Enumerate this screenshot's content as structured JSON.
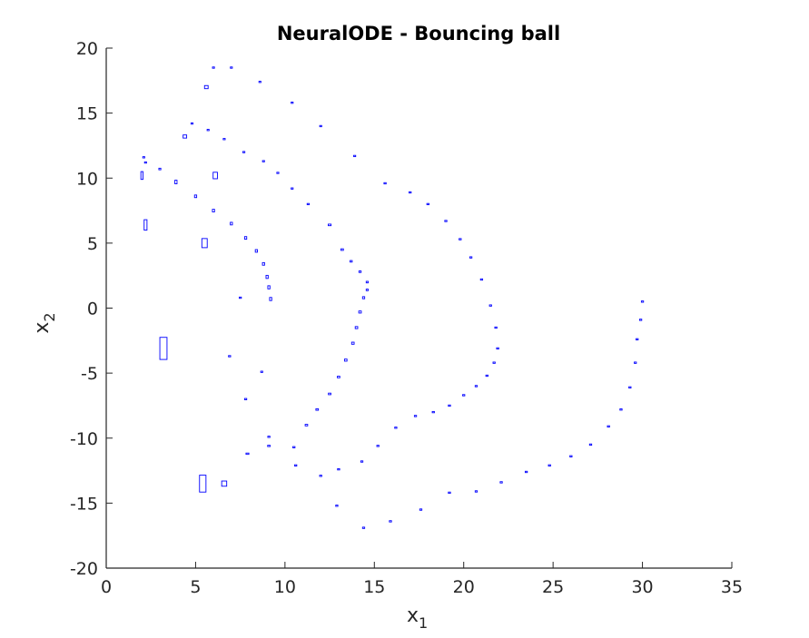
{
  "chart_data": {
    "type": "scatter",
    "title": "NeuralODE - Bouncing ball",
    "xlabel": {
      "base": "x",
      "subscript": "1"
    },
    "ylabel": {
      "base": "x",
      "subscript": "2"
    },
    "xlim": [
      0,
      35
    ],
    "ylim": [
      -20,
      20
    ],
    "xticks": [
      0,
      5,
      10,
      15,
      20,
      25,
      30,
      35
    ],
    "yticks": [
      -20,
      -15,
      -10,
      -5,
      0,
      5,
      10,
      15,
      20
    ],
    "xtick_labels": [
      "0",
      "5",
      "10",
      "15",
      "20",
      "25",
      "30",
      "35"
    ],
    "ytick_labels": [
      "-20",
      "-15",
      "-10",
      "-5",
      "0",
      "5",
      "10",
      "15",
      "20"
    ],
    "grid": false,
    "marker": "uncertainty-box",
    "color": "#0000ff",
    "axis_color": "#262626",
    "points": [
      [
        6.0,
        18.5,
        0.05,
        0.03
      ],
      [
        7.0,
        18.5,
        0.05,
        0.03
      ],
      [
        8.6,
        17.4,
        0.05,
        0.04
      ],
      [
        10.4,
        15.8,
        0.05,
        0.04
      ],
      [
        12.0,
        14.0,
        0.05,
        0.03
      ],
      [
        13.9,
        11.7,
        0.05,
        0.03
      ],
      [
        15.6,
        9.6,
        0.06,
        0.04
      ],
      [
        17.0,
        8.9,
        0.06,
        0.04
      ],
      [
        18.0,
        8.0,
        0.06,
        0.04
      ],
      [
        19.0,
        6.7,
        0.06,
        0.04
      ],
      [
        19.8,
        5.3,
        0.06,
        0.04
      ],
      [
        20.4,
        3.9,
        0.06,
        0.04
      ],
      [
        21.0,
        2.2,
        0.06,
        0.04
      ],
      [
        21.5,
        0.2,
        0.06,
        0.04
      ],
      [
        21.8,
        -1.5,
        0.06,
        0.04
      ],
      [
        21.9,
        -3.1,
        0.06,
        0.04
      ],
      [
        21.7,
        -4.2,
        0.06,
        0.04
      ],
      [
        21.3,
        -5.2,
        0.06,
        0.04
      ],
      [
        20.7,
        -6.0,
        0.06,
        0.04
      ],
      [
        20.0,
        -6.7,
        0.06,
        0.04
      ],
      [
        19.2,
        -7.5,
        0.06,
        0.04
      ],
      [
        18.3,
        -8.0,
        0.06,
        0.04
      ],
      [
        17.3,
        -8.3,
        0.06,
        0.04
      ],
      [
        16.2,
        -9.2,
        0.06,
        0.04
      ],
      [
        15.2,
        -10.6,
        0.06,
        0.04
      ],
      [
        14.3,
        -11.8,
        0.06,
        0.04
      ],
      [
        13.0,
        -12.4,
        0.06,
        0.04
      ],
      [
        12.0,
        -12.9,
        0.06,
        0.04
      ],
      [
        10.6,
        -12.1,
        0.06,
        0.04
      ],
      [
        9.1,
        -10.6,
        0.07,
        0.05
      ],
      [
        10.5,
        -10.7,
        0.06,
        0.04
      ],
      [
        11.2,
        -9.0,
        0.07,
        0.06
      ],
      [
        11.8,
        -7.8,
        0.07,
        0.06
      ],
      [
        12.5,
        -6.6,
        0.07,
        0.06
      ],
      [
        13.0,
        -5.3,
        0.07,
        0.06
      ],
      [
        13.4,
        -4.0,
        0.07,
        0.08
      ],
      [
        13.8,
        -2.7,
        0.07,
        0.08
      ],
      [
        14.0,
        -1.5,
        0.07,
        0.08
      ],
      [
        14.2,
        -0.3,
        0.07,
        0.08
      ],
      [
        14.4,
        0.8,
        0.06,
        0.08
      ],
      [
        14.6,
        1.4,
        0.05,
        0.06
      ],
      [
        14.6,
        2.0,
        0.05,
        0.06
      ],
      [
        14.2,
        2.8,
        0.06,
        0.06
      ],
      [
        13.7,
        3.6,
        0.06,
        0.06
      ],
      [
        13.2,
        4.5,
        0.07,
        0.06
      ],
      [
        12.5,
        6.4,
        0.08,
        0.06
      ],
      [
        11.3,
        8.0,
        0.06,
        0.04
      ],
      [
        10.4,
        9.2,
        0.05,
        0.04
      ],
      [
        9.6,
        10.4,
        0.05,
        0.04
      ],
      [
        8.8,
        11.3,
        0.05,
        0.04
      ],
      [
        7.7,
        12.0,
        0.05,
        0.04
      ],
      [
        6.6,
        13.0,
        0.05,
        0.04
      ],
      [
        5.7,
        13.7,
        0.05,
        0.04
      ],
      [
        4.8,
        14.2,
        0.05,
        0.04
      ],
      [
        4.4,
        13.2,
        0.1,
        0.12
      ],
      [
        2.1,
        11.6,
        0.04,
        0.04
      ],
      [
        2.2,
        11.2,
        0.04,
        0.04
      ],
      [
        3.0,
        10.7,
        0.05,
        0.06
      ],
      [
        2.0,
        10.2,
        0.06,
        0.3
      ],
      [
        3.9,
        9.7,
        0.06,
        0.14
      ],
      [
        5.0,
        8.6,
        0.06,
        0.1
      ],
      [
        6.0,
        7.5,
        0.06,
        0.1
      ],
      [
        7.0,
        6.5,
        0.06,
        0.1
      ],
      [
        7.8,
        5.4,
        0.06,
        0.1
      ],
      [
        8.4,
        4.4,
        0.06,
        0.1
      ],
      [
        8.8,
        3.4,
        0.06,
        0.1
      ],
      [
        9.0,
        2.4,
        0.06,
        0.12
      ],
      [
        9.1,
        1.6,
        0.06,
        0.12
      ],
      [
        9.2,
        0.7,
        0.06,
        0.12
      ],
      [
        2.2,
        6.4,
        0.08,
        0.4
      ],
      [
        5.5,
        5.0,
        0.15,
        0.35
      ],
      [
        6.1,
        10.2,
        0.12,
        0.25
      ],
      [
        5.6,
        17.0,
        0.1,
        0.12
      ],
      [
        7.5,
        0.8,
        0.06,
        0.04
      ],
      [
        3.2,
        -3.1,
        0.2,
        0.85
      ],
      [
        6.9,
        -3.7,
        0.06,
        0.04
      ],
      [
        8.7,
        -4.9,
        0.05,
        0.04
      ],
      [
        7.8,
        -7.0,
        0.06,
        0.05
      ],
      [
        9.1,
        -9.9,
        0.06,
        0.05
      ],
      [
        7.9,
        -11.2,
        0.08,
        0.05
      ],
      [
        5.4,
        -13.5,
        0.18,
        0.65
      ],
      [
        6.6,
        -13.5,
        0.14,
        0.2
      ],
      [
        12.9,
        -15.2,
        0.06,
        0.05
      ],
      [
        14.4,
        -16.9,
        0.06,
        0.05
      ],
      [
        15.9,
        -16.4,
        0.06,
        0.05
      ],
      [
        17.6,
        -15.5,
        0.06,
        0.05
      ],
      [
        19.2,
        -14.2,
        0.06,
        0.05
      ],
      [
        20.7,
        -14.1,
        0.06,
        0.05
      ],
      [
        22.1,
        -13.4,
        0.06,
        0.05
      ],
      [
        23.5,
        -12.6,
        0.06,
        0.05
      ],
      [
        24.8,
        -12.1,
        0.06,
        0.05
      ],
      [
        26.0,
        -11.4,
        0.06,
        0.05
      ],
      [
        27.1,
        -10.5,
        0.06,
        0.05
      ],
      [
        28.1,
        -9.1,
        0.06,
        0.05
      ],
      [
        28.8,
        -7.8,
        0.06,
        0.05
      ],
      [
        29.3,
        -6.1,
        0.06,
        0.05
      ],
      [
        29.6,
        -4.2,
        0.06,
        0.05
      ],
      [
        29.7,
        -2.4,
        0.06,
        0.05
      ],
      [
        29.9,
        -0.9,
        0.06,
        0.05
      ],
      [
        30.0,
        0.5,
        0.06,
        0.05
      ]
    ]
  }
}
